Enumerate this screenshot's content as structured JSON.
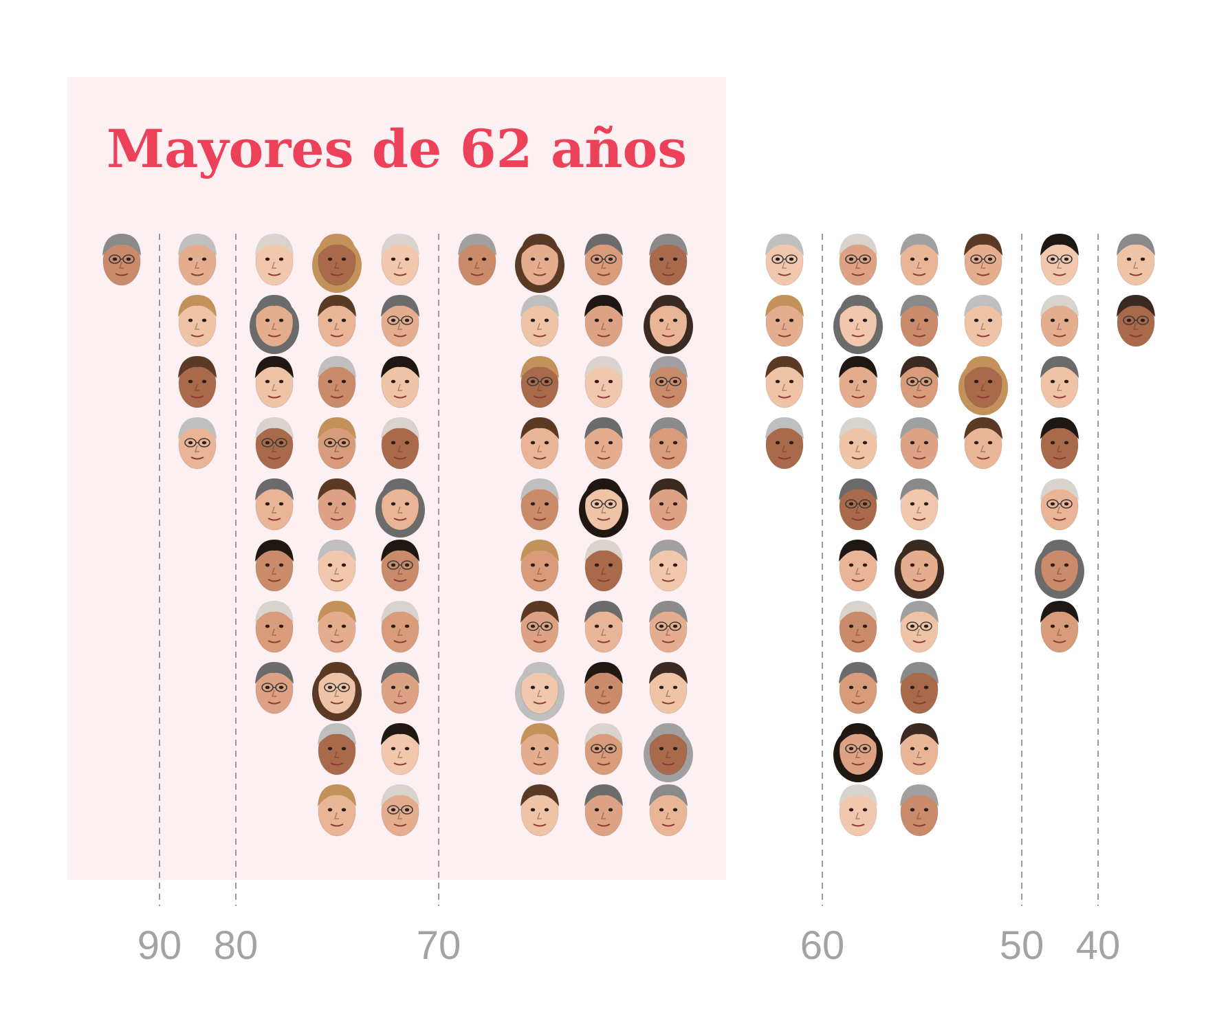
{
  "chart_data": {
    "type": "scatter",
    "title": "Mayores de 62 años",
    "highlight_threshold": 62,
    "x_axis": {
      "reversed": true,
      "ticks": [
        90,
        80,
        70,
        60,
        50,
        40
      ]
    },
    "gridlines": "dashed-vertical",
    "columns": [
      {
        "count": 1,
        "shade": "older"
      },
      {
        "count": 4,
        "shade": "older"
      },
      {
        "count": 8,
        "shade": "older"
      },
      {
        "count": 10,
        "shade": "older"
      },
      {
        "count": 10,
        "shade": "older"
      },
      {
        "count": 1,
        "shade": "older"
      },
      {
        "count": 10,
        "shade": "older"
      },
      {
        "count": 10,
        "shade": "older"
      },
      {
        "count": 10,
        "shade": "older"
      },
      {
        "count": 4,
        "shade": "younger"
      },
      {
        "count": 10,
        "shade": "younger"
      },
      {
        "count": 10,
        "shade": "younger"
      },
      {
        "count": 4,
        "shade": "younger"
      },
      {
        "count": 7,
        "shade": "younger"
      },
      {
        "count": 2,
        "shade": "younger"
      }
    ]
  },
  "colors": {
    "title": "#ec4158",
    "highlight_bg": "#fdf0f2",
    "gridline": "#9a9a9a",
    "axis_text": "#a3a3a3"
  }
}
